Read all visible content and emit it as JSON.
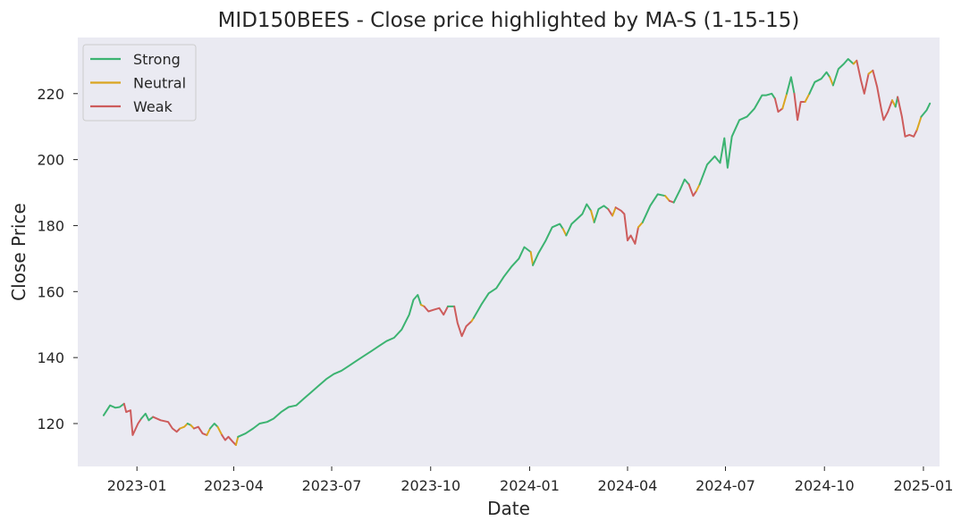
{
  "chart_data": {
    "type": "line",
    "title": "MID150BEES - Close price highlighted by MA-S (1-15-15)",
    "xlabel": "Date",
    "ylabel": "Close Price",
    "xlim": [
      "2022-11-07",
      "2025-01-16"
    ],
    "ylim": [
      107,
      237
    ],
    "grid": false,
    "background": "#eaeaf2",
    "legend_position": "top-left",
    "x_ticks": [
      "2023-01",
      "2023-04",
      "2023-07",
      "2023-10",
      "2024-01",
      "2024-04",
      "2024-07",
      "2024-10",
      "2025-01"
    ],
    "y_ticks": [
      120,
      140,
      160,
      180,
      200,
      220
    ],
    "series": [
      {
        "name": "Strong",
        "color": "#3cb371"
      },
      {
        "name": "Neutral",
        "color": "#daa520"
      },
      {
        "name": "Weak",
        "color": "#cd5c5c"
      }
    ],
    "segments": [
      {
        "state": "Strong",
        "points": [
          [
            "2022-12-01",
            122.5
          ],
          [
            "2022-12-07",
            125.5
          ],
          [
            "2022-12-12",
            124.8
          ],
          [
            "2022-12-16",
            125.0
          ],
          [
            "2022-12-20",
            126.0
          ]
        ]
      },
      {
        "state": "Weak",
        "points": [
          [
            "2022-12-20",
            126.0
          ],
          [
            "2022-12-22",
            123.5
          ],
          [
            "2022-12-26",
            124.0
          ],
          [
            "2022-12-28",
            116.5
          ],
          [
            "2023-01-02",
            120.0
          ],
          [
            "2023-01-05",
            121.5
          ]
        ]
      },
      {
        "state": "Strong",
        "points": [
          [
            "2023-01-05",
            121.5
          ],
          [
            "2023-01-09",
            123.0
          ],
          [
            "2023-01-12",
            121.0
          ],
          [
            "2023-01-16",
            122.0
          ]
        ]
      },
      {
        "state": "Weak",
        "points": [
          [
            "2023-01-16",
            122.0
          ],
          [
            "2023-01-23",
            121.0
          ],
          [
            "2023-01-30",
            120.5
          ],
          [
            "2023-02-03",
            118.5
          ],
          [
            "2023-02-07",
            117.5
          ],
          [
            "2023-02-10",
            118.5
          ]
        ]
      },
      {
        "state": "Neutral",
        "points": [
          [
            "2023-02-10",
            118.5
          ],
          [
            "2023-02-14",
            119.0
          ],
          [
            "2023-02-17",
            120.0
          ]
        ]
      },
      {
        "state": "Strong",
        "points": [
          [
            "2023-02-17",
            120.0
          ],
          [
            "2023-02-20",
            119.5
          ]
        ]
      },
      {
        "state": "Neutral",
        "points": [
          [
            "2023-02-20",
            119.5
          ],
          [
            "2023-02-23",
            118.5
          ]
        ]
      },
      {
        "state": "Weak",
        "points": [
          [
            "2023-02-23",
            118.5
          ],
          [
            "2023-02-27",
            119.0
          ],
          [
            "2023-03-03",
            117.0
          ],
          [
            "2023-03-07",
            116.5
          ]
        ]
      },
      {
        "state": "Neutral",
        "points": [
          [
            "2023-03-07",
            116.5
          ],
          [
            "2023-03-10",
            118.5
          ]
        ]
      },
      {
        "state": "Strong",
        "points": [
          [
            "2023-03-10",
            118.5
          ],
          [
            "2023-03-14",
            120.0
          ],
          [
            "2023-03-17",
            119.0
          ]
        ]
      },
      {
        "state": "Neutral",
        "points": [
          [
            "2023-03-17",
            119.0
          ],
          [
            "2023-03-21",
            116.5
          ]
        ]
      },
      {
        "state": "Weak",
        "points": [
          [
            "2023-03-21",
            116.5
          ],
          [
            "2023-03-24",
            115.0
          ],
          [
            "2023-03-27",
            116.0
          ],
          [
            "2023-03-31",
            114.5
          ],
          [
            "2023-04-03",
            113.5
          ]
        ]
      },
      {
        "state": "Neutral",
        "points": [
          [
            "2023-04-03",
            113.5
          ],
          [
            "2023-04-05",
            116.0
          ]
        ]
      },
      {
        "state": "Strong",
        "points": [
          [
            "2023-04-05",
            116.0
          ],
          [
            "2023-04-12",
            117.0
          ],
          [
            "2023-04-19",
            118.5
          ],
          [
            "2023-04-25",
            120.0
          ],
          [
            "2023-05-02",
            120.5
          ],
          [
            "2023-05-08",
            121.5
          ],
          [
            "2023-05-15",
            123.5
          ],
          [
            "2023-05-22",
            125.0
          ],
          [
            "2023-05-29",
            125.5
          ],
          [
            "2023-06-05",
            127.5
          ],
          [
            "2023-06-12",
            129.5
          ],
          [
            "2023-06-19",
            131.5
          ],
          [
            "2023-06-26",
            133.5
          ],
          [
            "2023-07-03",
            135.0
          ],
          [
            "2023-07-10",
            136.0
          ],
          [
            "2023-07-17",
            137.5
          ],
          [
            "2023-07-24",
            139.0
          ],
          [
            "2023-07-31",
            140.5
          ],
          [
            "2023-08-07",
            142.0
          ],
          [
            "2023-08-14",
            143.5
          ],
          [
            "2023-08-21",
            145.0
          ],
          [
            "2023-08-28",
            146.0
          ],
          [
            "2023-09-04",
            148.5
          ],
          [
            "2023-09-11",
            153.0
          ],
          [
            "2023-09-15",
            157.5
          ],
          [
            "2023-09-19",
            159.0
          ],
          [
            "2023-09-22",
            156.0
          ]
        ]
      },
      {
        "state": "Neutral",
        "points": [
          [
            "2023-09-22",
            156.0
          ],
          [
            "2023-09-25",
            155.5
          ]
        ]
      },
      {
        "state": "Weak",
        "points": [
          [
            "2023-09-25",
            155.5
          ],
          [
            "2023-09-29",
            154.0
          ],
          [
            "2023-10-04",
            154.5
          ],
          [
            "2023-10-09",
            155.0
          ],
          [
            "2023-10-13",
            153.0
          ],
          [
            "2023-10-17",
            155.5
          ]
        ]
      },
      {
        "state": "Strong",
        "points": [
          [
            "2023-10-17",
            155.5
          ],
          [
            "2023-10-23",
            155.5
          ]
        ]
      },
      {
        "state": "Weak",
        "points": [
          [
            "2023-10-23",
            155.5
          ],
          [
            "2023-10-26",
            150.5
          ],
          [
            "2023-10-30",
            146.5
          ],
          [
            "2023-11-03",
            149.5
          ],
          [
            "2023-11-08",
            151.0
          ]
        ]
      },
      {
        "state": "Neutral",
        "points": [
          [
            "2023-11-08",
            151.0
          ],
          [
            "2023-11-10",
            152.0
          ]
        ]
      },
      {
        "state": "Strong",
        "points": [
          [
            "2023-11-10",
            152.0
          ],
          [
            "2023-11-17",
            156.0
          ],
          [
            "2023-11-24",
            159.5
          ],
          [
            "2023-12-01",
            161.0
          ],
          [
            "2023-12-08",
            164.5
          ],
          [
            "2023-12-15",
            167.5
          ],
          [
            "2023-12-22",
            170.0
          ],
          [
            "2023-12-27",
            173.5
          ],
          [
            "2024-01-02",
            172.0
          ]
        ]
      },
      {
        "state": "Neutral",
        "points": [
          [
            "2024-01-02",
            172.0
          ],
          [
            "2024-01-04",
            168.0
          ]
        ]
      },
      {
        "state": "Strong",
        "points": [
          [
            "2024-01-04",
            168.0
          ],
          [
            "2024-01-09",
            171.5
          ],
          [
            "2024-01-16",
            175.5
          ],
          [
            "2024-01-22",
            179.5
          ],
          [
            "2024-01-29",
            180.5
          ],
          [
            "2024-02-01",
            179.0
          ]
        ]
      },
      {
        "state": "Neutral",
        "points": [
          [
            "2024-02-01",
            179.0
          ],
          [
            "2024-02-04",
            177.0
          ]
        ]
      },
      {
        "state": "Strong",
        "points": [
          [
            "2024-02-04",
            177.0
          ],
          [
            "2024-02-09",
            180.5
          ],
          [
            "2024-02-14",
            182.0
          ],
          [
            "2024-02-19",
            183.5
          ],
          [
            "2024-02-23",
            186.5
          ],
          [
            "2024-02-27",
            184.5
          ]
        ]
      },
      {
        "state": "Neutral",
        "points": [
          [
            "2024-02-27",
            184.5
          ],
          [
            "2024-03-01",
            181.0
          ]
        ]
      },
      {
        "state": "Strong",
        "points": [
          [
            "2024-03-01",
            181.0
          ],
          [
            "2024-03-05",
            185.0
          ],
          [
            "2024-03-10",
            186.0
          ],
          [
            "2024-03-14",
            185.0
          ]
        ]
      },
      {
        "state": "Weak",
        "points": [
          [
            "2024-03-14",
            185.0
          ],
          [
            "2024-03-18",
            183.0
          ]
        ]
      },
      {
        "state": "Neutral",
        "points": [
          [
            "2024-03-18",
            183.0
          ],
          [
            "2024-03-21",
            185.5
          ]
        ]
      },
      {
        "state": "Weak",
        "points": [
          [
            "2024-03-21",
            185.5
          ],
          [
            "2024-03-26",
            184.5
          ],
          [
            "2024-03-29",
            183.5
          ],
          [
            "2024-04-01",
            175.5
          ],
          [
            "2024-04-04",
            177.0
          ],
          [
            "2024-04-08",
            174.5
          ],
          [
            "2024-04-11",
            179.5
          ]
        ]
      },
      {
        "state": "Neutral",
        "points": [
          [
            "2024-04-11",
            179.5
          ],
          [
            "2024-04-15",
            181.0
          ]
        ]
      },
      {
        "state": "Strong",
        "points": [
          [
            "2024-04-15",
            181.0
          ],
          [
            "2024-04-22",
            186.0
          ],
          [
            "2024-04-29",
            189.5
          ],
          [
            "2024-05-06",
            189.0
          ]
        ]
      },
      {
        "state": "Neutral",
        "points": [
          [
            "2024-05-06",
            189.0
          ],
          [
            "2024-05-10",
            187.5
          ]
        ]
      },
      {
        "state": "Weak",
        "points": [
          [
            "2024-05-10",
            187.5
          ],
          [
            "2024-05-14",
            187.0
          ]
        ]
      },
      {
        "state": "Strong",
        "points": [
          [
            "2024-05-14",
            187.0
          ],
          [
            "2024-05-20",
            191.0
          ],
          [
            "2024-05-24",
            194.0
          ],
          [
            "2024-05-28",
            192.5
          ]
        ]
      },
      {
        "state": "Weak",
        "points": [
          [
            "2024-05-28",
            192.5
          ],
          [
            "2024-06-01",
            189.0
          ],
          [
            "2024-06-04",
            190.5
          ]
        ]
      },
      {
        "state": "Neutral",
        "points": [
          [
            "2024-06-04",
            190.5
          ],
          [
            "2024-06-07",
            192.5
          ]
        ]
      },
      {
        "state": "Strong",
        "points": [
          [
            "2024-06-07",
            192.5
          ],
          [
            "2024-06-14",
            198.5
          ],
          [
            "2024-06-21",
            201.0
          ],
          [
            "2024-06-26",
            199.0
          ],
          [
            "2024-06-30",
            206.5
          ],
          [
            "2024-07-03",
            197.5
          ],
          [
            "2024-07-07",
            207.0
          ],
          [
            "2024-07-14",
            212.0
          ],
          [
            "2024-07-21",
            213.0
          ],
          [
            "2024-07-28",
            215.5
          ],
          [
            "2024-08-04",
            219.5
          ],
          [
            "2024-08-08",
            219.5
          ],
          [
            "2024-08-13",
            220.0
          ],
          [
            "2024-08-16",
            218.5
          ]
        ]
      },
      {
        "state": "Weak",
        "points": [
          [
            "2024-08-16",
            218.5
          ],
          [
            "2024-08-19",
            214.5
          ],
          [
            "2024-08-23",
            215.5
          ]
        ]
      },
      {
        "state": "Neutral",
        "points": [
          [
            "2024-08-23",
            215.5
          ],
          [
            "2024-08-27",
            220.0
          ]
        ]
      },
      {
        "state": "Strong",
        "points": [
          [
            "2024-08-27",
            220.0
          ],
          [
            "2024-08-31",
            225.0
          ],
          [
            "2024-09-03",
            220.0
          ]
        ]
      },
      {
        "state": "Weak",
        "points": [
          [
            "2024-09-03",
            220.0
          ],
          [
            "2024-09-06",
            212.0
          ],
          [
            "2024-09-09",
            217.5
          ],
          [
            "2024-09-13",
            217.5
          ]
        ]
      },
      {
        "state": "Neutral",
        "points": [
          [
            "2024-09-13",
            217.5
          ],
          [
            "2024-09-17",
            220.0
          ]
        ]
      },
      {
        "state": "Strong",
        "points": [
          [
            "2024-09-17",
            220.0
          ],
          [
            "2024-09-22",
            223.5
          ],
          [
            "2024-09-28",
            224.5
          ],
          [
            "2024-10-03",
            226.5
          ],
          [
            "2024-10-06",
            225.0
          ]
        ]
      },
      {
        "state": "Neutral",
        "points": [
          [
            "2024-10-06",
            225.0
          ],
          [
            "2024-10-09",
            222.5
          ]
        ]
      },
      {
        "state": "Strong",
        "points": [
          [
            "2024-10-09",
            222.5
          ],
          [
            "2024-10-14",
            227.5
          ],
          [
            "2024-10-19",
            229.0
          ],
          [
            "2024-10-23",
            230.5
          ],
          [
            "2024-10-28",
            229.0
          ]
        ]
      },
      {
        "state": "Neutral",
        "points": [
          [
            "2024-10-28",
            229.0
          ],
          [
            "2024-10-31",
            230.0
          ]
        ]
      },
      {
        "state": "Weak",
        "points": [
          [
            "2024-10-31",
            230.0
          ],
          [
            "2024-11-04",
            224.0
          ],
          [
            "2024-11-07",
            220.0
          ],
          [
            "2024-11-11",
            226.0
          ]
        ]
      },
      {
        "state": "Neutral",
        "points": [
          [
            "2024-11-11",
            226.0
          ],
          [
            "2024-11-15",
            227.0
          ]
        ]
      },
      {
        "state": "Weak",
        "points": [
          [
            "2024-11-15",
            227.0
          ],
          [
            "2024-11-19",
            222.0
          ],
          [
            "2024-11-23",
            215.0
          ],
          [
            "2024-11-25",
            212.0
          ],
          [
            "2024-11-29",
            214.5
          ],
          [
            "2024-12-03",
            218.0
          ]
        ]
      },
      {
        "state": "Neutral",
        "points": [
          [
            "2024-12-03",
            218.0
          ],
          [
            "2024-12-06",
            216.0
          ]
        ]
      },
      {
        "state": "Strong",
        "points": [
          [
            "2024-12-06",
            216.0
          ],
          [
            "2024-12-08",
            219.0
          ]
        ]
      },
      {
        "state": "Weak",
        "points": [
          [
            "2024-12-08",
            219.0
          ],
          [
            "2024-12-12",
            213.0
          ],
          [
            "2024-12-15",
            207.0
          ],
          [
            "2024-12-19",
            207.5
          ],
          [
            "2024-12-23",
            207.0
          ],
          [
            "2024-12-26",
            209.0
          ]
        ]
      },
      {
        "state": "Neutral",
        "points": [
          [
            "2024-12-26",
            209.0
          ],
          [
            "2024-12-30",
            213.0
          ]
        ]
      },
      {
        "state": "Strong",
        "points": [
          [
            "2024-12-30",
            213.0
          ],
          [
            "2025-01-04",
            215.0
          ],
          [
            "2025-01-07",
            217.0
          ]
        ]
      }
    ]
  }
}
